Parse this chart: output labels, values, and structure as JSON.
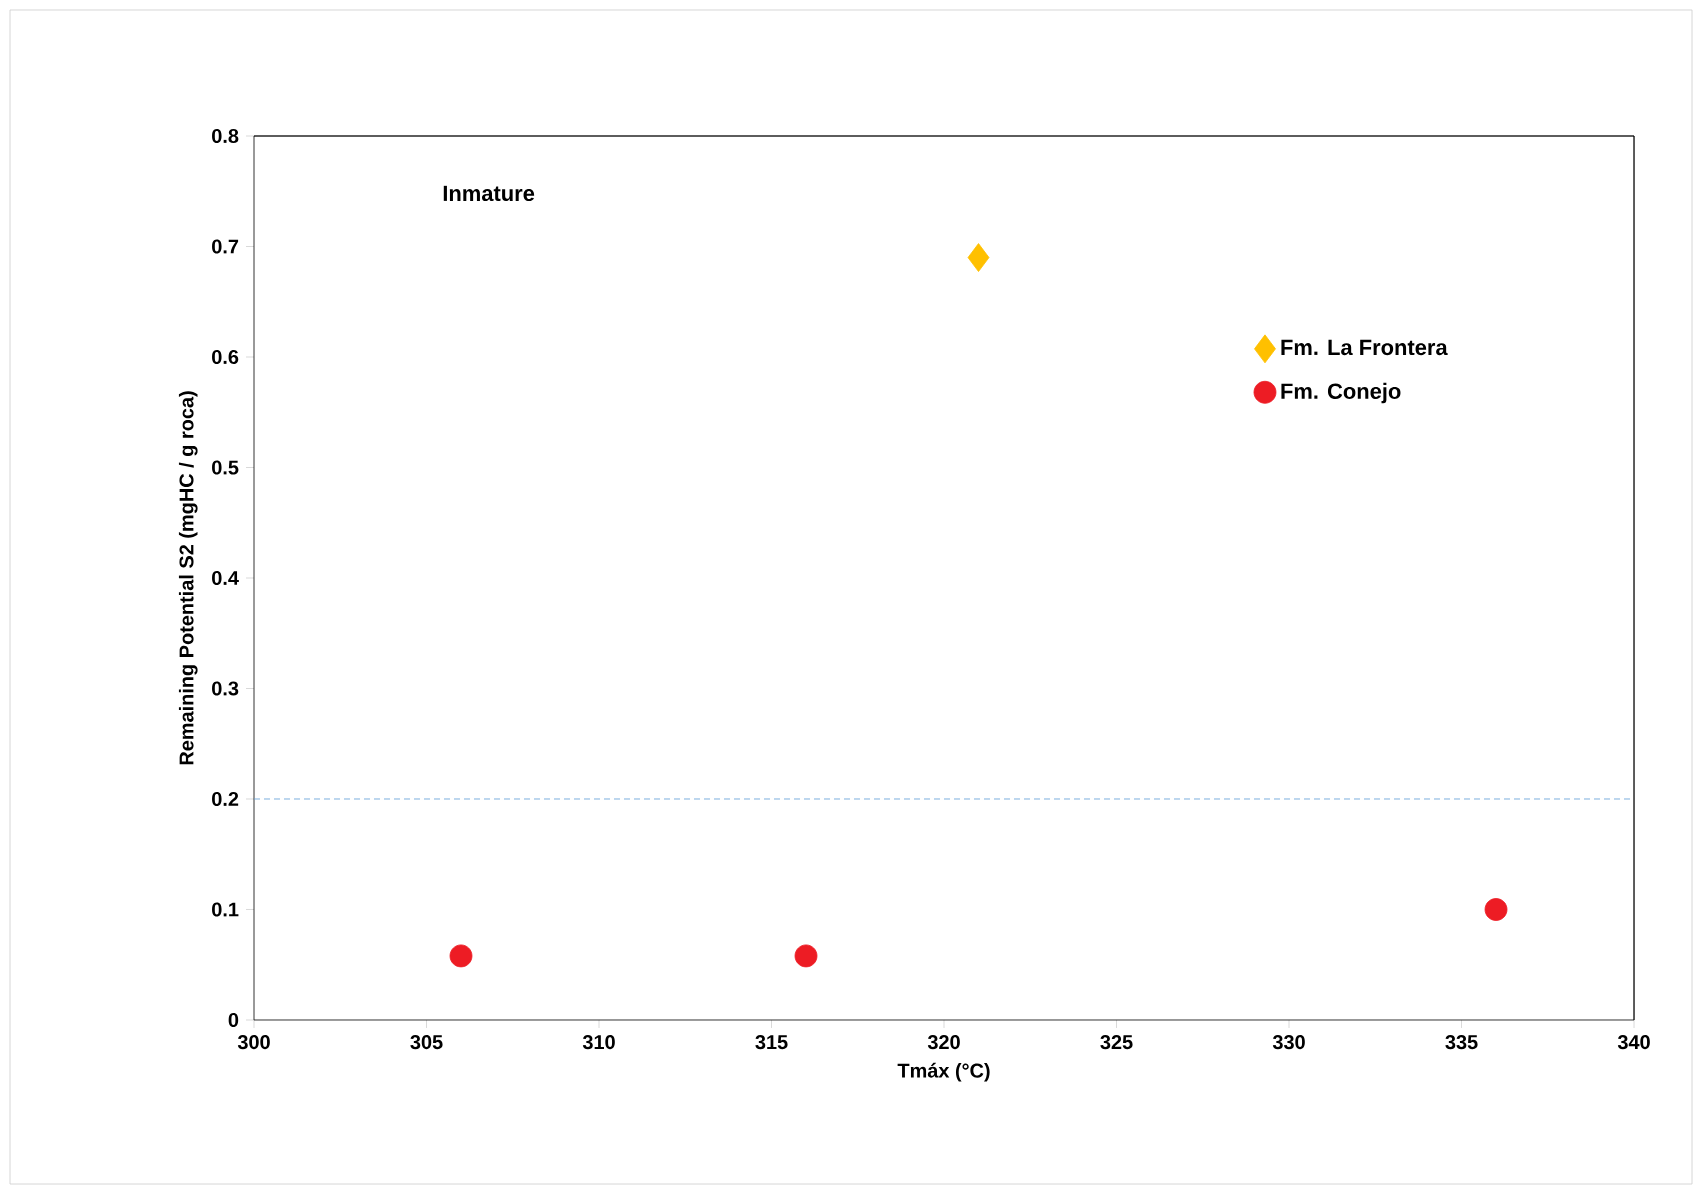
{
  "chart_data": {
    "type": "scatter",
    "xlabel": "Tmáx (°C)",
    "ylabel": "Remaining Potential S2 (mgHC / g roca)",
    "xlim": [
      300,
      340
    ],
    "xticks": [
      300,
      305,
      310,
      315,
      320,
      325,
      330,
      335,
      340
    ],
    "ylim": [
      0,
      0.8
    ],
    "yticks": [
      {
        "value": 0,
        "label": "0"
      },
      0.1,
      0.2,
      0.3,
      0.4,
      0.5,
      0.6,
      0.7,
      0.8
    ],
    "annotations": [
      "Inmature"
    ],
    "ref_lines": [
      {
        "axis": "y",
        "value": 0.2,
        "color": "#5b9bd5",
        "line_style": "dashed"
      }
    ],
    "legend": "right",
    "series": [
      {
        "name": "Fm. La Frontera",
        "color": "#ffc000",
        "marker": "diamond",
        "x": [
          321
        ],
        "values": [
          0.69
        ]
      },
      {
        "name": "Fm. Conejo",
        "color": "#ed1c24",
        "marker": "circle",
        "x": [
          306,
          316,
          336
        ],
        "values": [
          0.058,
          0.058,
          0.1
        ]
      }
    ]
  }
}
